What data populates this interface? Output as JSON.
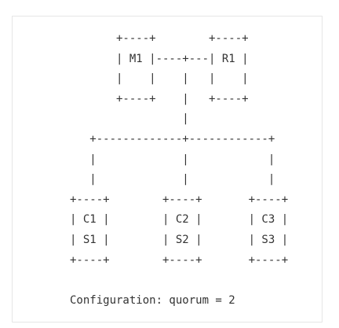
{
  "diagram": {
    "lines": [
      "         +----+        +----+",
      "         | M1 |----+---| R1 |",
      "         |    |    |   |    |",
      "         +----+    |   +----+",
      "                   |",
      "     +-------------+------------+",
      "     |             |            |",
      "     |             |            |",
      "  +----+        +----+       +----+",
      "  | C1 |        | C2 |       | C3 |",
      "  | S1 |        | S2 |       | S3 |",
      "  +----+        +----+       +----+",
      "",
      "  Configuration: quorum = 2"
    ]
  }
}
